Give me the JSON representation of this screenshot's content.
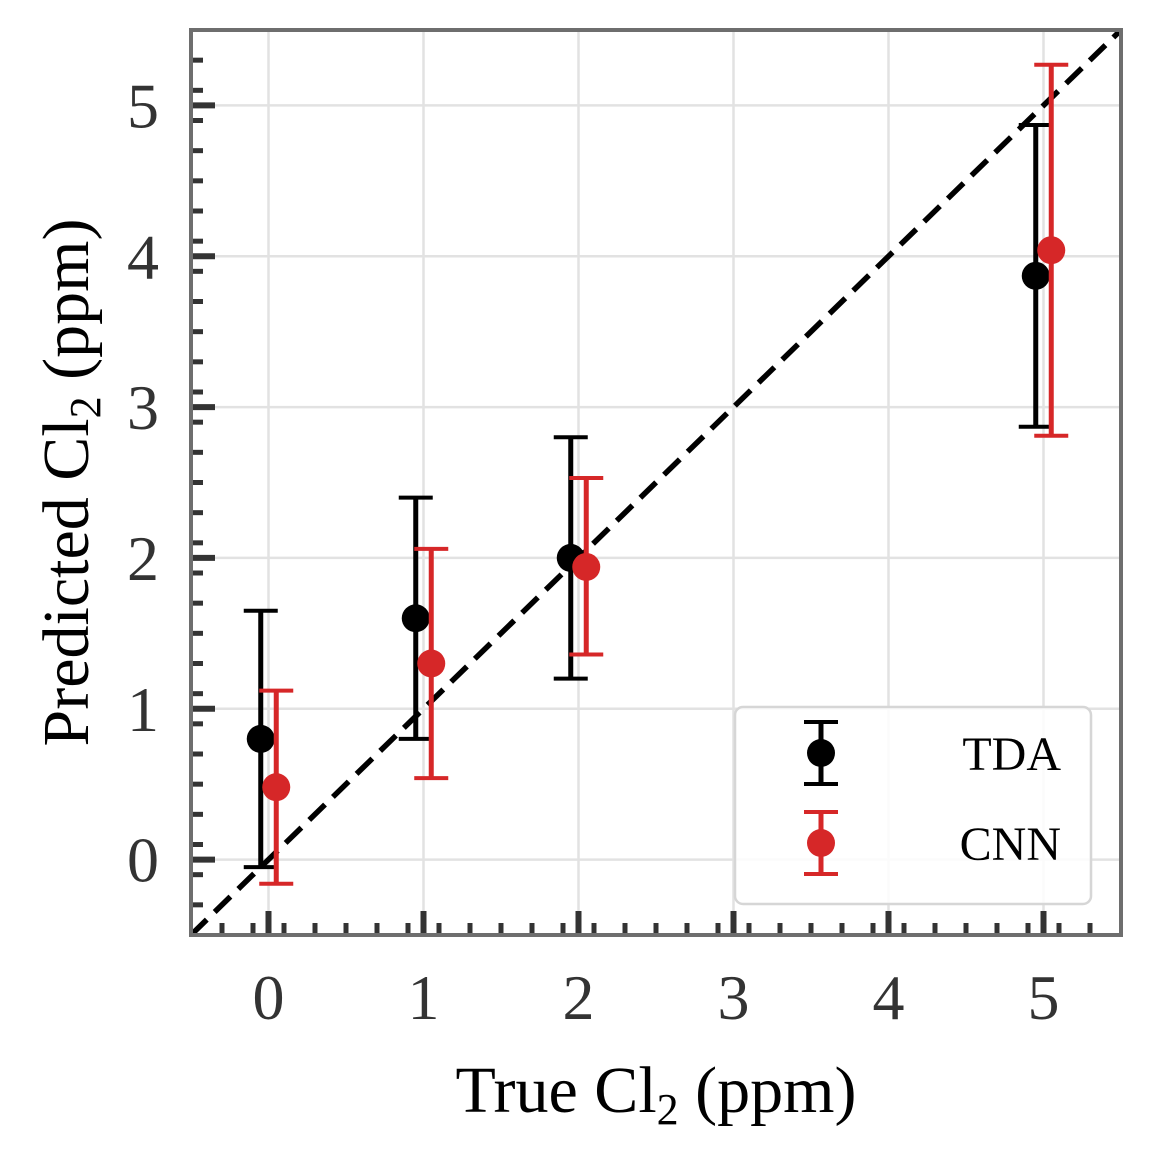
{
  "chart_data": {
    "type": "scatter",
    "xlabel": {
      "main": "True Cl",
      "sub": "2",
      "tail": " (ppm)"
    },
    "ylabel": {
      "main": "Predicted Cl",
      "sub": "2",
      "tail": " (ppm)"
    },
    "xlim": [
      -0.5,
      5.5
    ],
    "ylim": [
      -0.5,
      5.5
    ],
    "xticks": [
      0,
      1,
      2,
      3,
      4,
      5
    ],
    "yticks": [
      0,
      1,
      2,
      3,
      4,
      5
    ],
    "grid": true,
    "legend_position": "lower right",
    "reference_line": {
      "style": "dashed",
      "color": "#000000",
      "from": [
        -0.5,
        -0.5
      ],
      "to": [
        5.5,
        5.5
      ]
    },
    "series": [
      {
        "name": "TDA",
        "color": "#000000",
        "x": [
          -0.05,
          0.95,
          1.95,
          4.95
        ],
        "y": [
          0.8,
          1.6,
          2.0,
          3.87
        ],
        "err_low": [
          -0.05,
          0.8,
          1.2,
          2.87
        ],
        "err_high": [
          1.65,
          2.4,
          2.8,
          4.87
        ]
      },
      {
        "name": "CNN",
        "color": "#d62728",
        "x": [
          0.05,
          1.05,
          2.05,
          5.05
        ],
        "y": [
          0.48,
          1.3,
          1.94,
          4.04
        ],
        "err_low": [
          -0.16,
          0.54,
          1.36,
          2.81
        ],
        "err_high": [
          1.12,
          2.06,
          2.53,
          5.27
        ]
      }
    ]
  }
}
